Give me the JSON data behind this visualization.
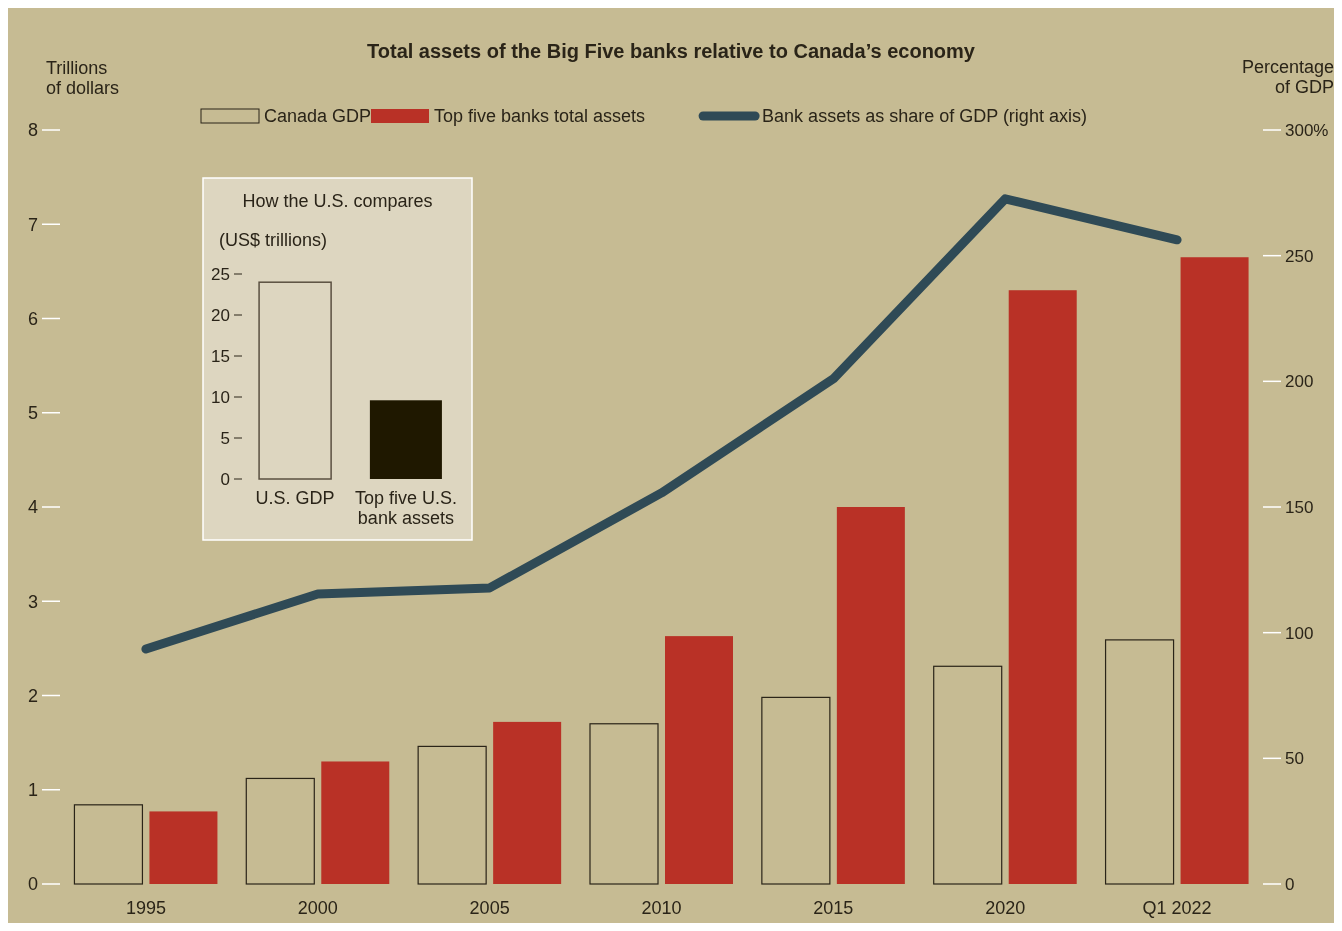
{
  "chart_data": [
    {
      "type": "bar",
      "title": "Total assets of the Big Five banks relative to Canada’s economy",
      "ylabel": "Trillions of dollars",
      "y2label": "Percentage of GDP",
      "legend": "top",
      "categories": [
        "1995",
        "2000",
        "2005",
        "2010",
        "2015",
        "2020",
        "Q1 2022"
      ],
      "series": [
        {
          "name": "Canada GDP",
          "color": "#c6bb93",
          "values": [
            0.84,
            1.12,
            1.46,
            1.7,
            1.98,
            2.31,
            2.59
          ]
        },
        {
          "name": "Top five banks total assets",
          "color": "#b93126",
          "values": [
            0.77,
            1.3,
            1.72,
            2.63,
            4.0,
            6.3,
            6.65
          ]
        },
        {
          "name": "Bank assets as share of GDP (right axis)",
          "type": "line",
          "axis": "y2",
          "color": "#2f4a56",
          "values": [
            93.5,
            115.4,
            117.8,
            155.6,
            201,
            272.6,
            256.3
          ]
        }
      ],
      "ylim": [
        0,
        8
      ],
      "yticks": [
        0,
        1,
        2,
        3,
        4,
        5,
        6,
        7,
        8
      ],
      "y2lim": [
        0,
        300
      ],
      "y2ticks": [
        0,
        50,
        100,
        150,
        200,
        250,
        {
          "value": 300,
          "label": "300%"
        }
      ]
    },
    {
      "type": "bar",
      "title": "How the U.S. compares",
      "ylabel": "(US$ trillions)",
      "categories": [
        "U.S. GDP",
        "Top five U.S. bank assets"
      ],
      "values": [
        24,
        9.6
      ],
      "colors": [
        "#ddd6c0",
        "#1f1800"
      ],
      "ylim": [
        0,
        25
      ],
      "yticks": [
        0,
        5,
        10,
        15,
        20,
        25
      ]
    }
  ]
}
